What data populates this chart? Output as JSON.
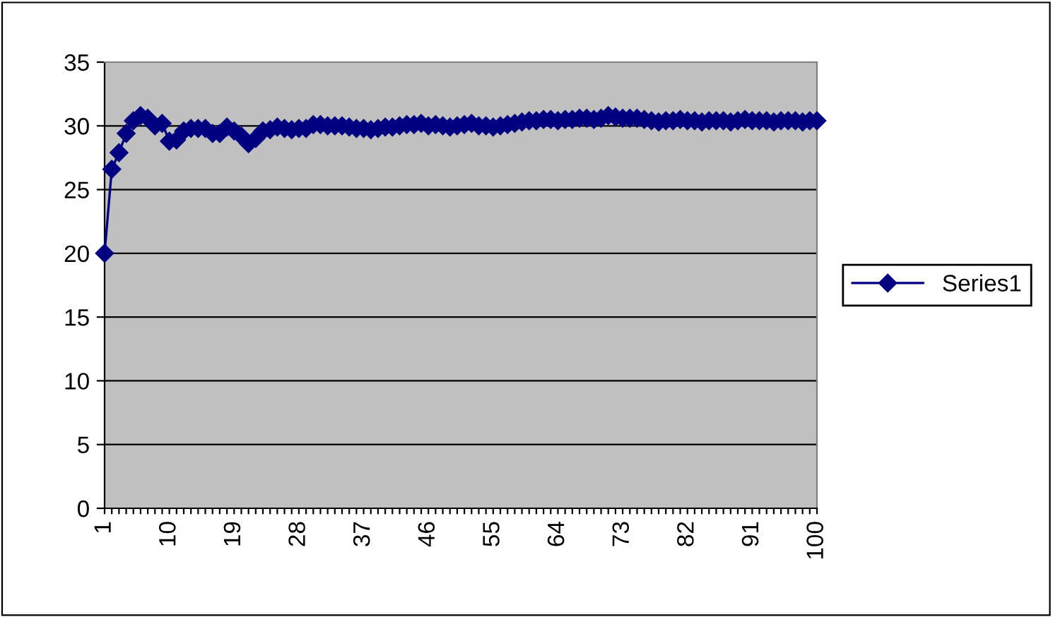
{
  "chart_data": {
    "type": "line",
    "categories": [
      "1",
      null,
      null,
      null,
      null,
      null,
      null,
      null,
      null,
      "10",
      null,
      null,
      null,
      null,
      null,
      null,
      null,
      null,
      "19",
      null,
      null,
      null,
      null,
      null,
      null,
      null,
      null,
      "28",
      null,
      null,
      null,
      null,
      null,
      null,
      null,
      null,
      "37",
      null,
      null,
      null,
      null,
      null,
      null,
      null,
      null,
      "46",
      null,
      null,
      null,
      null,
      null,
      null,
      null,
      null,
      "55",
      null,
      null,
      null,
      null,
      null,
      null,
      null,
      null,
      "64",
      null,
      null,
      null,
      null,
      null,
      null,
      null,
      null,
      "73",
      null,
      null,
      null,
      null,
      null,
      null,
      null,
      null,
      "82",
      null,
      null,
      null,
      null,
      null,
      null,
      null,
      null,
      "91",
      null,
      null,
      null,
      null,
      null,
      null,
      null,
      null,
      "100"
    ],
    "series": [
      {
        "name": "Series1",
        "color": "#000080",
        "values": [
          20,
          26.6,
          27.9,
          29.4,
          30.4,
          30.8,
          30.6,
          30.0,
          30.2,
          28.8,
          28.9,
          29.6,
          29.8,
          29.8,
          29.8,
          29.4,
          29.4,
          29.9,
          29.6,
          29.2,
          28.6,
          29.0,
          29.6,
          29.7,
          29.9,
          29.8,
          29.7,
          29.8,
          29.8,
          30.1,
          30.1,
          30.0,
          30.0,
          30.0,
          29.9,
          29.8,
          29.8,
          29.7,
          29.8,
          29.9,
          29.9,
          30.0,
          30.1,
          30.1,
          30.2,
          30.0,
          30.1,
          30.0,
          29.9,
          30.0,
          30.1,
          30.2,
          30.0,
          30.0,
          29.9,
          30.0,
          30.1,
          30.2,
          30.3,
          30.4,
          30.4,
          30.5,
          30.5,
          30.4,
          30.5,
          30.5,
          30.6,
          30.6,
          30.5,
          30.6,
          30.8,
          30.7,
          30.6,
          30.6,
          30.6,
          30.5,
          30.4,
          30.3,
          30.4,
          30.4,
          30.5,
          30.4,
          30.4,
          30.3,
          30.4,
          30.4,
          30.4,
          30.3,
          30.4,
          30.5,
          30.4,
          30.4,
          30.4,
          30.3,
          30.4,
          30.4,
          30.4,
          30.3,
          30.4,
          30.4
        ]
      }
    ],
    "ylim": [
      0,
      35
    ],
    "yticks": [
      0,
      5,
      10,
      15,
      20,
      25,
      30,
      35
    ],
    "grid": "y",
    "legend": "right",
    "marker": "diamond",
    "line_style": "solid"
  }
}
